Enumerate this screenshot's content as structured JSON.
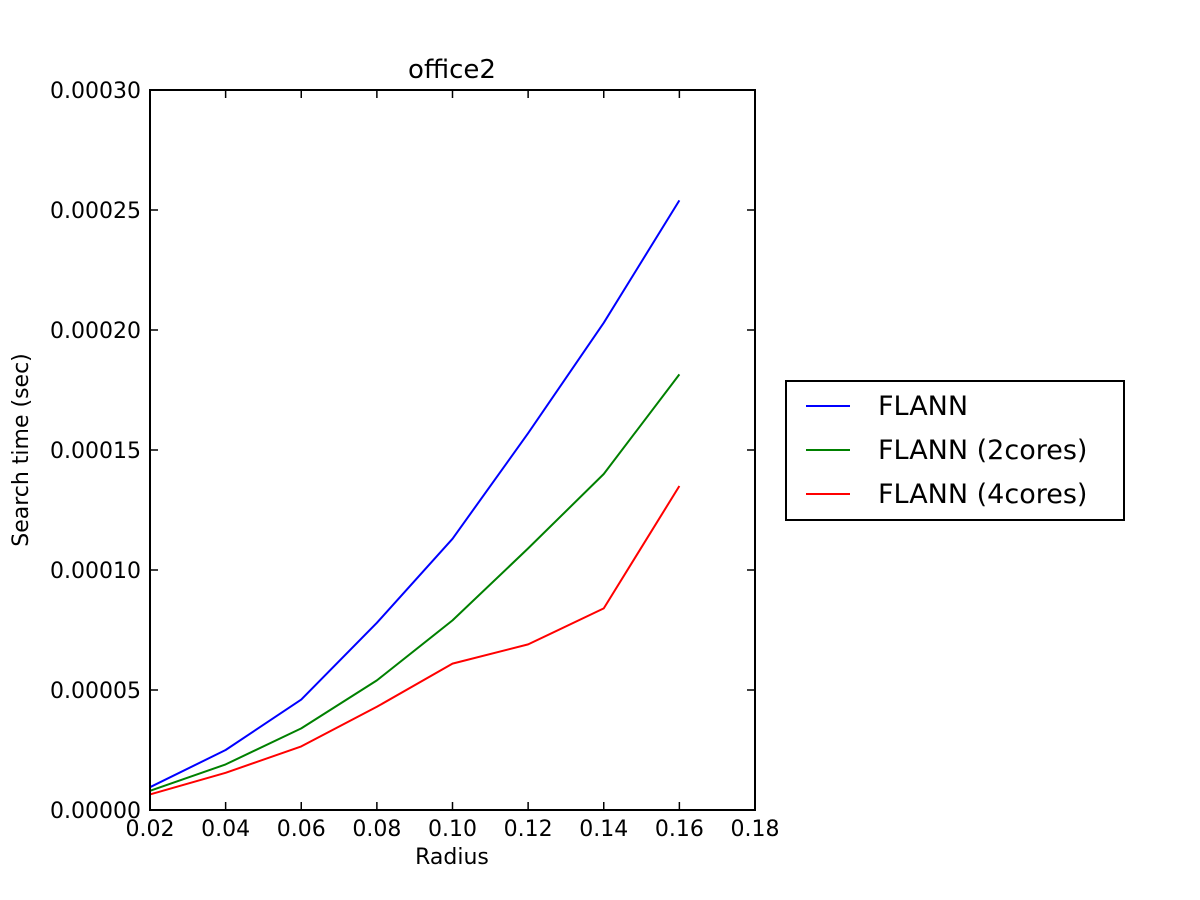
{
  "chart_data": {
    "type": "line",
    "title": "office2",
    "xlabel": "Radius",
    "ylabel": "Search time (sec)",
    "xlim": [
      0.02,
      0.18
    ],
    "ylim": [
      0.0,
      0.0003
    ],
    "xticks": [
      0.02,
      0.04,
      0.06,
      0.08,
      0.1,
      0.12,
      0.14,
      0.16,
      0.18
    ],
    "xtick_labels": [
      "0.02",
      "0.04",
      "0.06",
      "0.08",
      "0.10",
      "0.12",
      "0.14",
      "0.16",
      "0.18"
    ],
    "yticks": [
      0.0,
      5e-05,
      0.0001,
      0.00015,
      0.0002,
      0.00025,
      0.0003
    ],
    "ytick_labels": [
      "0.00000",
      "0.00005",
      "0.00010",
      "0.00015",
      "0.00020",
      "0.00025",
      "0.00030"
    ],
    "grid": false,
    "legend_position": "right, outside plot",
    "x": [
      0.02,
      0.04,
      0.06,
      0.08,
      0.1,
      0.12,
      0.14,
      0.16
    ],
    "series": [
      {
        "name": "FLANN",
        "color": "#0000ff",
        "values": [
          9.5e-06,
          2.5e-05,
          4.6e-05,
          7.8e-05,
          0.000113,
          0.000157,
          0.000203,
          0.000254
        ]
      },
      {
        "name": "FLANN (2cores)",
        "color": "#008000",
        "values": [
          8e-06,
          1.9e-05,
          3.4e-05,
          5.4e-05,
          7.9e-05,
          0.000109,
          0.00014,
          0.0001815
        ]
      },
      {
        "name": "FLANN (4cores)",
        "color": "#ff0000",
        "values": [
          6.5e-06,
          1.55e-05,
          2.65e-05,
          4.3e-05,
          6.1e-05,
          6.9e-05,
          8.4e-05,
          0.000135
        ]
      }
    ]
  }
}
